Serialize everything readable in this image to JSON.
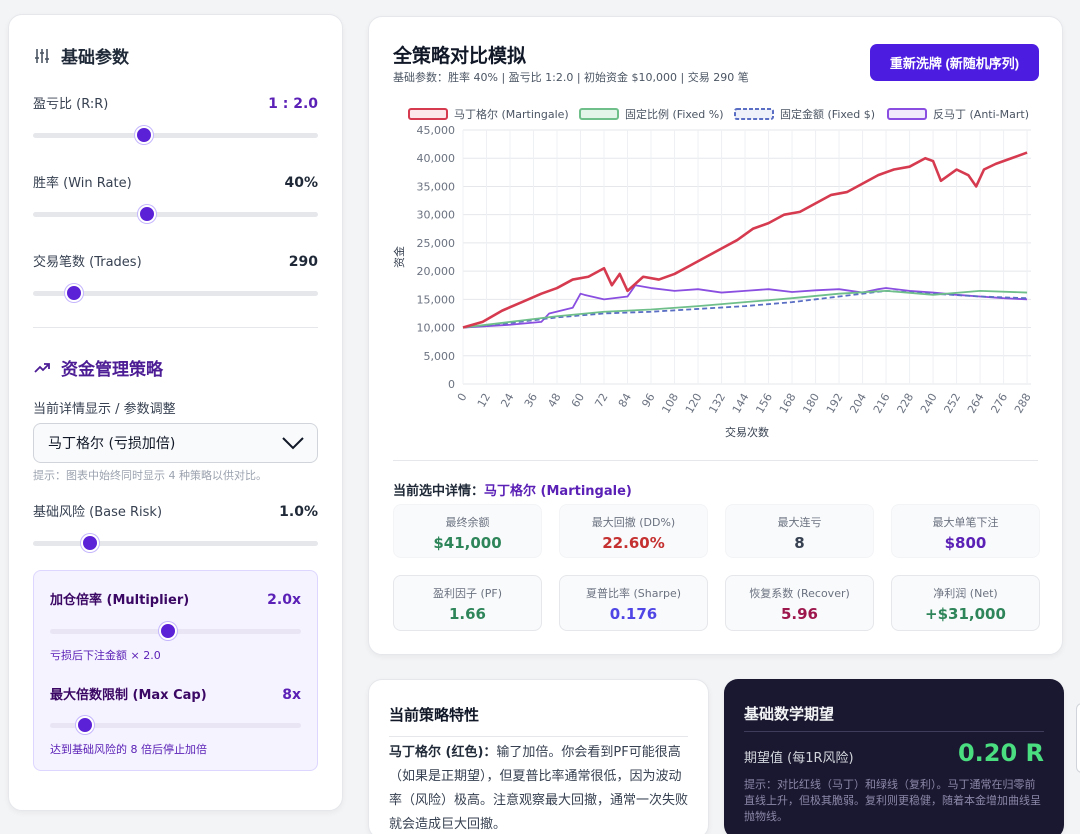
{
  "left": {
    "basic_title": "基础参数",
    "rr": {
      "label": "盈亏比 (R:R)",
      "value": "1 : 2.0",
      "level": 0.39
    },
    "winrate": {
      "label": "胜率 (Win Rate)",
      "value": "40%",
      "level": 0.4
    },
    "trades": {
      "label": "交易笔数 (Trades)",
      "value": "290",
      "level": 0.145
    },
    "mm_title": "资金管理策略",
    "view_label": "当前详情显示 / 参数调整",
    "select_value": "马丁格尔 (亏损加倍)",
    "hint": "提示：图表中始终同时显示 4 种策略以供对比。",
    "base_risk": {
      "label": "基础风险 (Base Risk)",
      "value": "1.0%",
      "level": 0.2
    },
    "multiplier": {
      "label": "加仓倍率 (Multiplier)",
      "value": "2.0x",
      "level": 0.47,
      "note": "亏损后下注金额 × 2.0"
    },
    "maxcap": {
      "label": "最大倍数限制 (Max Cap)",
      "value": "8x",
      "level": 0.14,
      "note": "达到基础风险的 8 倍后停止加倍"
    }
  },
  "main": {
    "title": "全策略对比模拟",
    "subtitle": "基础参数：胜率 40% | 盈亏比 1:2.0 | 初始资金 $10,000 | 交易 290 笔",
    "reshuffle": "重新洗牌 (新随机序列)",
    "detail_prefix": "当前选中详情：",
    "detail_name": "马丁格尔 (Martingale)",
    "stats": [
      {
        "label": "最终余额",
        "value": "$41,000",
        "color": "#2f855a"
      },
      {
        "label": "最大回撤 (DD%)",
        "value": "22.60%",
        "color": "#c53030"
      },
      {
        "label": "最大连亏",
        "value": "8",
        "color": "#374151"
      },
      {
        "label": "最大单笔下注",
        "value": "$800",
        "color": "#5b21b6"
      },
      {
        "label": "盈利因子 (PF)",
        "value": "1.66",
        "color": "#2f855a"
      },
      {
        "label": "夏普比率 (Sharpe)",
        "value": "0.176",
        "color": "#4f46e5"
      },
      {
        "label": "恢复系数 (Recover)",
        "value": "5.96",
        "color": "#9d174d"
      },
      {
        "label": "净利润 (Net)",
        "value": "+$31,000",
        "color": "#2f855a"
      }
    ]
  },
  "chart_data": {
    "type": "line",
    "ylabel": "资金",
    "xlabel": "交易次数",
    "ylim": [
      0,
      45000
    ],
    "yticks": [
      "0",
      "5,000",
      "10,000",
      "15,000",
      "20,000",
      "25,000",
      "30,000",
      "35,000",
      "40,000",
      "45,000"
    ],
    "xticks": [
      "0",
      "12",
      "24",
      "36",
      "48",
      "60",
      "72",
      "84",
      "96",
      "108",
      "120",
      "132",
      "144",
      "156",
      "168",
      "180",
      "192",
      "204",
      "216",
      "228",
      "240",
      "252",
      "264",
      "276",
      "288"
    ],
    "legend_position": "top",
    "series": [
      {
        "name": "马丁格尔 (Martingale)",
        "color": "#d63a4f",
        "style": "solid",
        "x": [
          0,
          10,
          20,
          30,
          40,
          48,
          56,
          64,
          72,
          76,
          80,
          84,
          92,
          100,
          108,
          116,
          124,
          132,
          140,
          148,
          156,
          164,
          172,
          180,
          188,
          196,
          204,
          212,
          220,
          228,
          236,
          240,
          244,
          252,
          258,
          262,
          266,
          272,
          280,
          288
        ],
        "y": [
          10000,
          11000,
          13000,
          14500,
          16000,
          17000,
          18500,
          19000,
          20500,
          17500,
          19500,
          16500,
          19000,
          18500,
          19500,
          21000,
          22500,
          24000,
          25500,
          27500,
          28500,
          30000,
          30500,
          32000,
          33500,
          34000,
          35500,
          37000,
          38000,
          38500,
          40000,
          39500,
          36000,
          38000,
          37000,
          35000,
          38000,
          39000,
          40000,
          41000
        ]
      },
      {
        "name": "固定比例 (Fixed %)",
        "color": "#6fbf8a",
        "style": "solid",
        "x": [
          0,
          24,
          48,
          72,
          96,
          120,
          144,
          168,
          192,
          216,
          240,
          264,
          288
        ],
        "y": [
          10000,
          11000,
          12000,
          12800,
          13200,
          13800,
          14500,
          15200,
          16000,
          16500,
          15800,
          16500,
          16200
        ]
      },
      {
        "name": "固定金额 (Fixed $)",
        "color": "#5a6fc4",
        "style": "dashed",
        "x": [
          0,
          24,
          48,
          72,
          96,
          120,
          144,
          168,
          192,
          216,
          240,
          264,
          288
        ],
        "y": [
          10000,
          10800,
          11800,
          12500,
          12800,
          13300,
          13800,
          14500,
          15500,
          16500,
          16000,
          15500,
          15200
        ]
      },
      {
        "name": "反马丁 (Anti-Mart)",
        "color": "#8a4fe0",
        "style": "solid",
        "x": [
          0,
          24,
          40,
          44,
          56,
          60,
          62,
          72,
          84,
          88,
          96,
          108,
          120,
          132,
          144,
          156,
          168,
          180,
          192,
          204,
          212,
          216,
          228,
          240,
          252,
          264,
          276,
          288
        ],
        "y": [
          10000,
          10500,
          11000,
          12500,
          13500,
          16000,
          15800,
          15000,
          15500,
          17500,
          17000,
          16500,
          16800,
          16200,
          16500,
          16800,
          16300,
          16600,
          16800,
          16200,
          16800,
          17000,
          16500,
          16200,
          15800,
          15500,
          15200,
          15000
        ]
      }
    ]
  },
  "traits": {
    "title": "当前策略特性",
    "strong": "马丁格尔 (红色)：",
    "body": "输了加倍。你会看到PF可能很高（如果是正期望），但夏普比率通常很低，因为波动率（风险）极高。注意观察最大回撤，通常一次失败就会造成巨大回撤。"
  },
  "expect": {
    "title": "基础数学期望",
    "label": "期望值 (每1R风险)",
    "value": "0.20 R",
    "note": "提示：对比红线（马丁）和绿线（复利）。马丁通常在归零前直线上升，但极其脆弱。复利则更稳健，随着本金增加曲线呈抛物线。"
  }
}
